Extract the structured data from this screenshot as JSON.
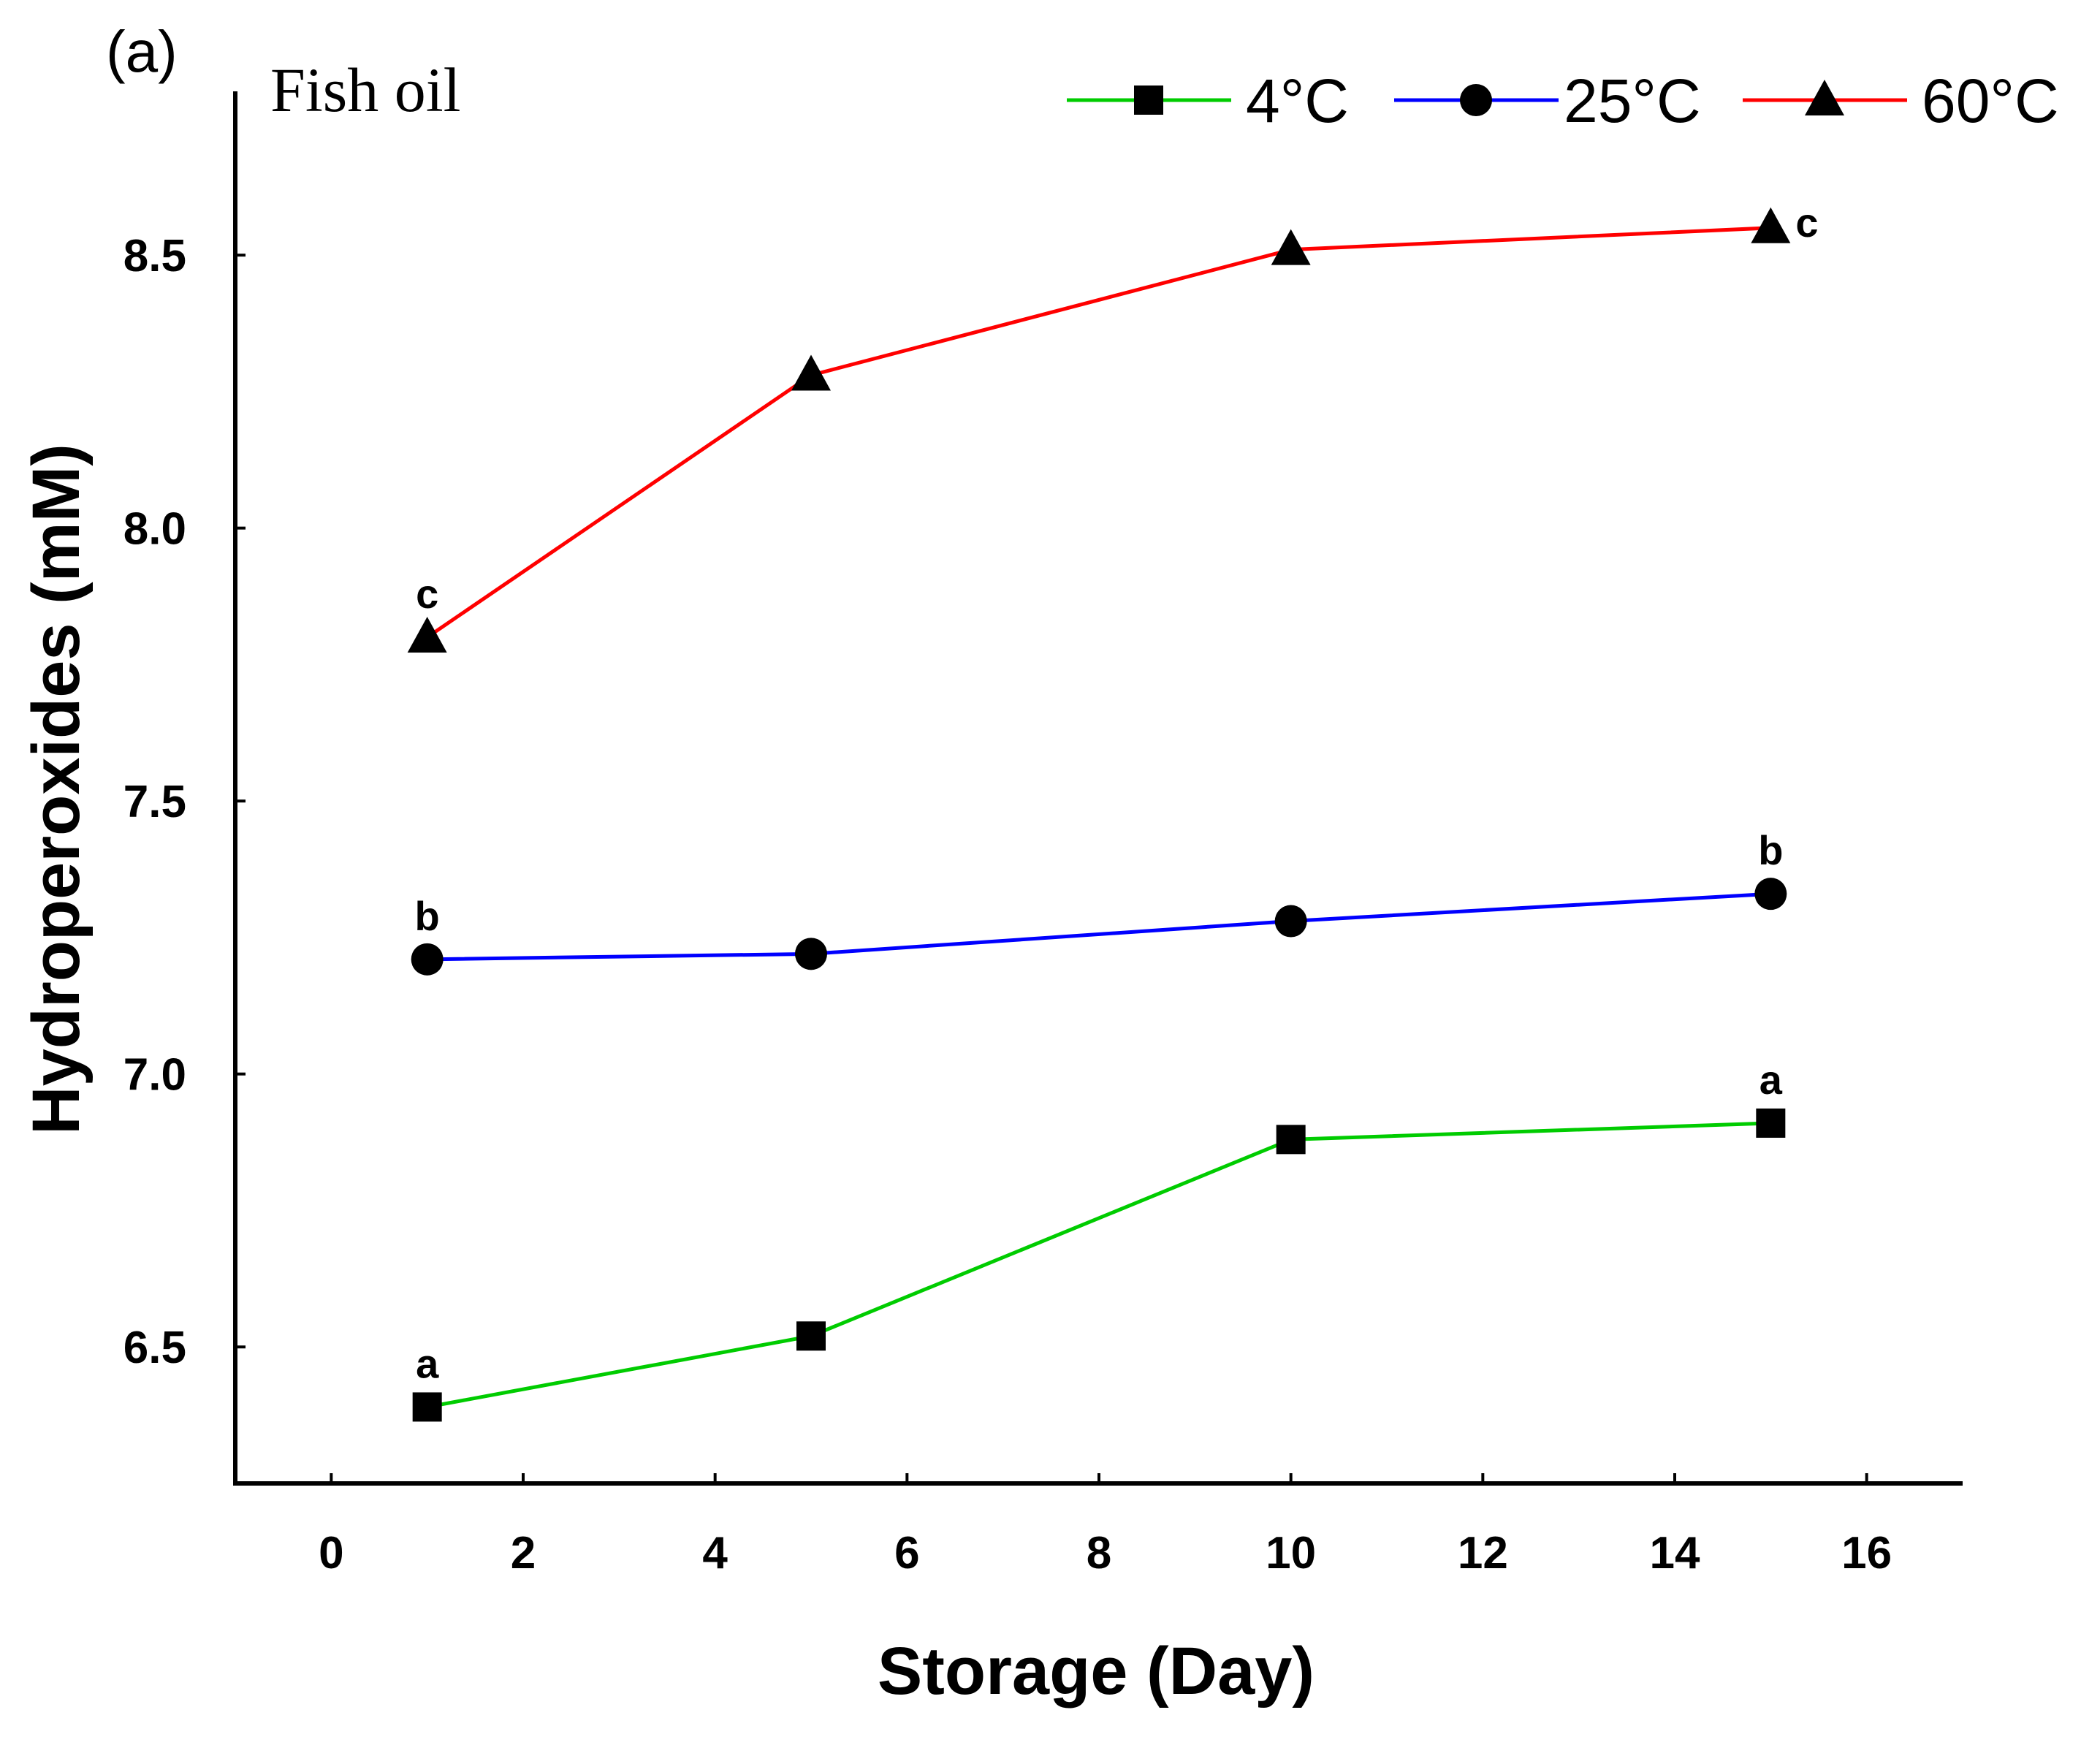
{
  "panel_label": "(a)",
  "chart_data": {
    "type": "line",
    "title": "Fish oil",
    "xlabel": "Storage (Day)",
    "ylabel": "Hydroperoxides (mM)",
    "xlim": [
      -1,
      17
    ],
    "ylim": [
      6.25,
      8.8
    ],
    "xticks": [
      0,
      2,
      4,
      6,
      8,
      10,
      12,
      14,
      16
    ],
    "xtick_labels": [
      "0",
      "2",
      "4",
      "6",
      "8",
      "10",
      "12",
      "14",
      "16"
    ],
    "yticks": [
      6.5,
      7.0,
      7.5,
      8.0,
      8.5
    ],
    "ytick_labels": [
      "6.5",
      "7.0",
      "7.5",
      "8.0",
      "8.5"
    ],
    "grid": false,
    "legend_position": "top-right",
    "x": [
      1,
      5,
      10,
      15
    ],
    "series": [
      {
        "name": "4°C",
        "color": "#00cc00",
        "marker": "square",
        "values": [
          6.39,
          6.52,
          6.88,
          6.91
        ],
        "annotations": [
          {
            "index": 0,
            "text": "a",
            "position": "above"
          },
          {
            "index": 3,
            "text": "a",
            "position": "above"
          }
        ]
      },
      {
        "name": "25°C",
        "color": "#0000ff",
        "marker": "circle",
        "values": [
          7.21,
          7.22,
          7.28,
          7.33
        ],
        "annotations": [
          {
            "index": 0,
            "text": "b",
            "position": "above"
          },
          {
            "index": 3,
            "text": "b",
            "position": "above"
          }
        ]
      },
      {
        "name": "60°C",
        "color": "#ff0000",
        "marker": "triangle",
        "values": [
          7.8,
          8.28,
          8.51,
          8.55
        ],
        "annotations": [
          {
            "index": 0,
            "text": "c",
            "position": "above"
          },
          {
            "index": 3,
            "text": "c",
            "position": "right"
          }
        ]
      }
    ]
  }
}
